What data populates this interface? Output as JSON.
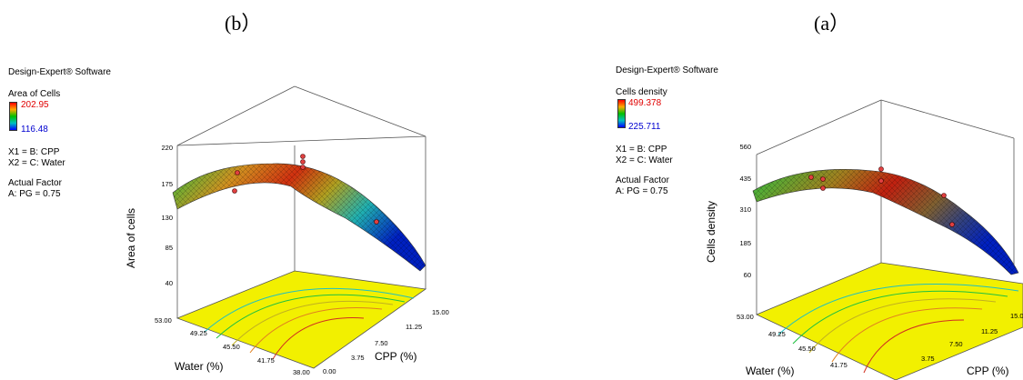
{
  "panels": [
    {
      "label": "(b）",
      "software": "Design-Expert® Software",
      "response": "Area of Cells",
      "legend_high": "202.95",
      "legend_low": "116.48",
      "x1": "X1 = B: CPP",
      "x2": "X2 = C: Water",
      "actual_factor_title": "Actual Factor",
      "actual_factor": "A: PG = 0.75",
      "zlabel": "Area of cells",
      "xlabel": "CPP (%)",
      "ylabel": "Water (%)"
    },
    {
      "label": "(a）",
      "software": "Design-Expert® Software",
      "response": "Cells density",
      "legend_high": "499.378",
      "legend_low": "225.711",
      "x1": "X1 = B: CPP",
      "x2": "X2 = C: Water",
      "actual_factor_title": "Actual Factor",
      "actual_factor": "A: PG = 0.75",
      "zlabel": "Cells density",
      "xlabel": "CPP (%)",
      "ylabel": "Water (%)"
    }
  ],
  "chart_data": [
    {
      "type": "surface",
      "zlabel": "Area of cells",
      "xlabel": "CPP (%)",
      "ylabel": "Water (%)",
      "z_ticks": [
        "220",
        "175",
        "130",
        "85",
        "40"
      ],
      "x_ticks": [
        "0.00",
        "3.75",
        "7.50",
        "11.25",
        "15.00"
      ],
      "y_ticks": [
        "38.00",
        "41.75",
        "45.50",
        "49.25",
        "53.00"
      ],
      "zlim": [
        40,
        220
      ],
      "xlim": [
        0,
        15
      ],
      "ylim": [
        38,
        53
      ],
      "color_range": [
        116.48,
        202.95
      ]
    },
    {
      "type": "surface",
      "zlabel": "Cells density",
      "xlabel": "CPP (%)",
      "ylabel": "Water (%)",
      "z_ticks": [
        "560",
        "435",
        "310",
        "185",
        "60"
      ],
      "x_ticks": [
        "3.75",
        "7.50",
        "11.25",
        "15.00"
      ],
      "y_ticks": [
        "41.75",
        "45.50",
        "49.25",
        "53.00"
      ],
      "zlim": [
        60,
        560
      ],
      "xlim": [
        0,
        15
      ],
      "ylim": [
        38,
        53
      ],
      "color_range": [
        225.711,
        499.378
      ]
    }
  ]
}
